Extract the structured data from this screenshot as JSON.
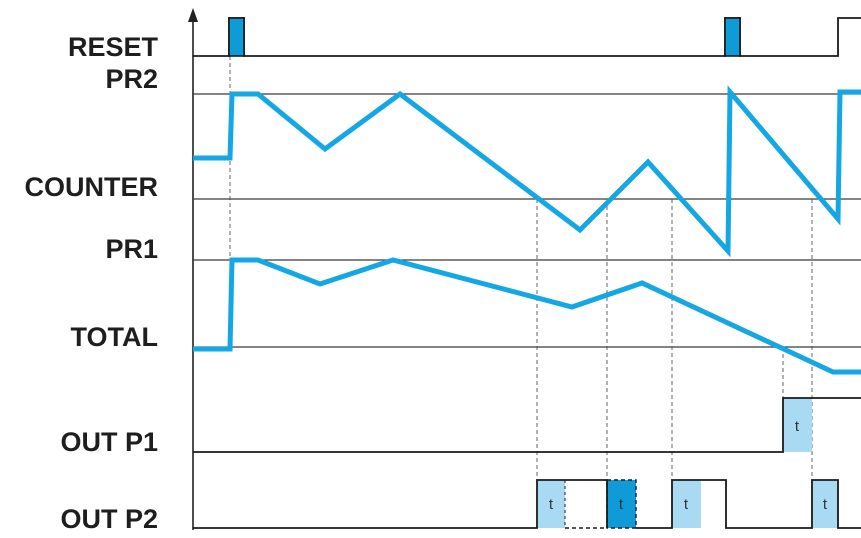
{
  "labels": {
    "reset": "RESET",
    "pr2": "PR2",
    "counter": "COUNTER",
    "pr1": "PR1",
    "total": "TOTAL",
    "out_p1": "OUT P1",
    "out_p2": "OUT P2"
  },
  "timer_label": "t",
  "colors": {
    "wave": "#14a7e3",
    "pulse_dark": "#0e9bd8",
    "pulse_light": "#a9daf3"
  }
}
